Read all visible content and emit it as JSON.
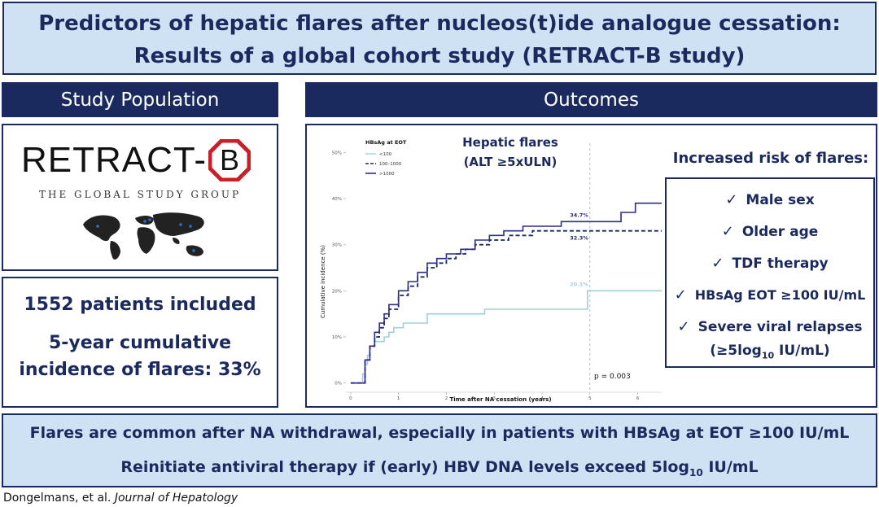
{
  "header": {
    "title_line1": "Predictors of hepatic flares after nucleos(t)ide analogue cessation:",
    "title_line2": "Results of a global cohort study (RETRACT-B study)"
  },
  "left": {
    "section_label": "Study Population",
    "logo_text": "RETRACT-",
    "logo_badge": "B",
    "logo_subtitle": "THE GLOBAL STUDY GROUP",
    "patients_text": "1552 patients included",
    "incidence_line1": "5-year cumulative",
    "incidence_line2": "incidence of flares: 33%"
  },
  "right": {
    "section_label": "Outcomes",
    "chart_title_line1": "Hepatic flares",
    "chart_title_line2": "(ALT ≥5xULN)",
    "risk_title": "Increased risk of flares:",
    "risk_items": [
      "Male sex",
      "Older age",
      "TDF therapy",
      "HBsAg EOT ≥100 IU/mL"
    ],
    "risk_item5_line1": "Severe viral relapses",
    "risk_item5_line2_prefix": "(≥5log",
    "risk_item5_line2_sub": "10",
    "risk_item5_line2_suffix": " IU/mL)",
    "check_symbol": "✓"
  },
  "footer": {
    "line1": "Flares are common after NA withdrawal, especially in patients with HBsAg at EOT ≥100 IU/mL",
    "line2_prefix": "Reinitiate antiviral therapy if (early) HBV DNA levels exceed 5log",
    "line2_sub": "10",
    "line2_suffix": " IU/mL",
    "citation_authors": "Dongelmans, et al. ",
    "citation_journal": "Journal of Hepatology"
  },
  "colors": {
    "navy": "#1b2a5e",
    "light_blue_panel": "#cfe2f3",
    "series_low": "#9fd0dc",
    "series_mid": "#1b2a5e",
    "series_high": "#2b2d8a"
  },
  "chart_data": {
    "type": "line",
    "legend_title": "HBsAg at EOT",
    "xlabel": "Time after NA cessation (years)",
    "ylabel": "Cumulative incidence (%)",
    "xlim": [
      -0.1,
      6.5
    ],
    "ylim": [
      -0.02,
      0.52
    ],
    "x_ticks": [
      0,
      1,
      2,
      3,
      4,
      5,
      6
    ],
    "x_tick_labels": [
      "0",
      "1",
      "2",
      "3",
      "4",
      "5",
      "6"
    ],
    "y_ticks": [
      0,
      0.1,
      0.2,
      0.3,
      0.4,
      0.5
    ],
    "y_tick_labels": [
      "0%",
      "10%",
      "20%",
      "30%",
      "40%",
      "50%"
    ],
    "vline_x": 5,
    "p_value_label": "p = 0.003",
    "series": [
      {
        "name": "<100",
        "color": "#9fd0dc",
        "dash": "solid",
        "end_label": "20.1%",
        "points": [
          [
            0,
            0
          ],
          [
            0.2,
            0
          ],
          [
            0.25,
            0.02
          ],
          [
            0.3,
            0.04
          ],
          [
            0.35,
            0.06
          ],
          [
            0.4,
            0.08
          ],
          [
            0.5,
            0.09
          ],
          [
            0.6,
            0.09
          ],
          [
            0.7,
            0.1
          ],
          [
            0.8,
            0.11
          ],
          [
            0.9,
            0.12
          ],
          [
            1.0,
            0.12
          ],
          [
            1.1,
            0.13
          ],
          [
            1.5,
            0.13
          ],
          [
            1.6,
            0.15
          ],
          [
            2.7,
            0.15
          ],
          [
            2.8,
            0.16
          ],
          [
            4.9,
            0.16
          ],
          [
            4.95,
            0.2
          ],
          [
            6.5,
            0.2
          ]
        ]
      },
      {
        "name": "100–1000",
        "color": "#1b2a5e",
        "dash": "dashed",
        "end_label": "32.3%",
        "points": [
          [
            0,
            0
          ],
          [
            0.2,
            0
          ],
          [
            0.3,
            0.05
          ],
          [
            0.4,
            0.08
          ],
          [
            0.5,
            0.1
          ],
          [
            0.6,
            0.12
          ],
          [
            0.7,
            0.14
          ],
          [
            0.8,
            0.16
          ],
          [
            1.0,
            0.19
          ],
          [
            1.2,
            0.21
          ],
          [
            1.4,
            0.23
          ],
          [
            1.6,
            0.25
          ],
          [
            1.8,
            0.26
          ],
          [
            2.0,
            0.27
          ],
          [
            2.2,
            0.28
          ],
          [
            2.4,
            0.29
          ],
          [
            2.6,
            0.3
          ],
          [
            2.9,
            0.31
          ],
          [
            3.3,
            0.32
          ],
          [
            3.8,
            0.33
          ],
          [
            4.5,
            0.33
          ],
          [
            6.5,
            0.33
          ]
        ]
      },
      {
        "name": ">1000",
        "color": "#2b2d8a",
        "dash": "solid",
        "end_label": "34.7%",
        "points": [
          [
            0,
            0
          ],
          [
            0.2,
            0
          ],
          [
            0.3,
            0.05
          ],
          [
            0.4,
            0.08
          ],
          [
            0.5,
            0.11
          ],
          [
            0.6,
            0.13
          ],
          [
            0.7,
            0.15
          ],
          [
            0.8,
            0.17
          ],
          [
            1.0,
            0.2
          ],
          [
            1.2,
            0.22
          ],
          [
            1.4,
            0.24
          ],
          [
            1.6,
            0.26
          ],
          [
            1.8,
            0.27
          ],
          [
            2.0,
            0.28
          ],
          [
            2.3,
            0.29
          ],
          [
            2.6,
            0.31
          ],
          [
            2.9,
            0.32
          ],
          [
            3.2,
            0.33
          ],
          [
            3.6,
            0.34
          ],
          [
            4.4,
            0.35
          ],
          [
            5.6,
            0.35
          ],
          [
            5.65,
            0.37
          ],
          [
            5.9,
            0.37
          ],
          [
            5.95,
            0.39
          ],
          [
            6.5,
            0.39
          ]
        ]
      }
    ]
  }
}
